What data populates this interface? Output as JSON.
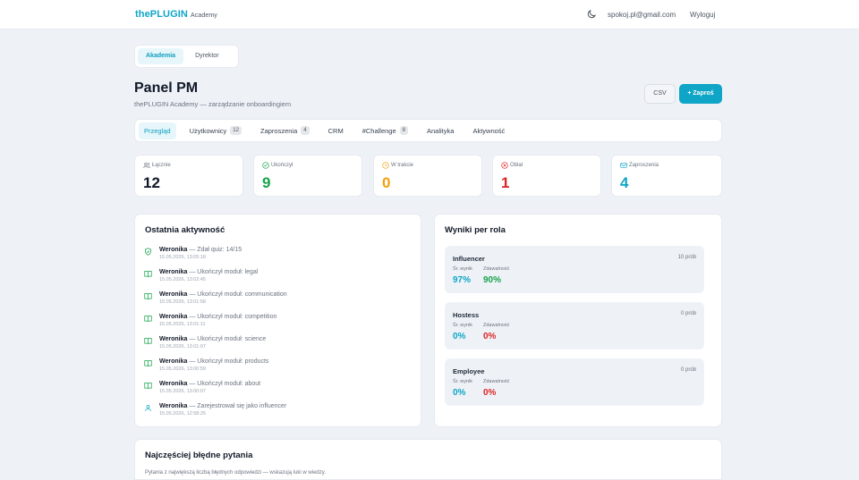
{
  "topbar": {
    "logo": "thePLUGIN",
    "logo_sub": "Academy",
    "email": "spokoj.pl@gmail.com",
    "logout": "Wyloguj"
  },
  "role_switch": [
    {
      "label": "Akademia",
      "active": true
    },
    {
      "label": "Dyrektor",
      "active": false
    }
  ],
  "header": {
    "title": "Panel PM",
    "subtitle": "thePLUGIN Academy — zarządzanie onboardingiem",
    "csv": "CSV",
    "invite": "+ Zaproś"
  },
  "tabs": [
    {
      "label": "Przegląd",
      "badge": ""
    },
    {
      "label": "Użytkownicy",
      "badge": "12"
    },
    {
      "label": "Zaproszenia",
      "badge": "4"
    },
    {
      "label": "CRM",
      "badge": ""
    },
    {
      "label": "#Challenge",
      "badge": "8"
    },
    {
      "label": "Analityka",
      "badge": ""
    },
    {
      "label": "Aktywność",
      "badge": ""
    }
  ],
  "stats": [
    {
      "label": "Łącznie",
      "value": "12",
      "color": "#111827",
      "icon": "users-icon"
    },
    {
      "label": "Ukończył",
      "value": "9",
      "color": "#16a34a",
      "icon": "check-circle-icon"
    },
    {
      "label": "W trakcie",
      "value": "0",
      "color": "#f59e0b",
      "icon": "clock-icon"
    },
    {
      "label": "Oblał",
      "value": "1",
      "color": "#dc2626",
      "icon": "x-circle-icon"
    },
    {
      "label": "Zaproszenia",
      "value": "4",
      "color": "#0ea5c6",
      "icon": "mail-icon"
    }
  ],
  "activity": {
    "title": "Ostatnia aktywność",
    "items": [
      {
        "name": "Weronika",
        "text": " — Zdał quiz: 14/15",
        "time": "15.05.2026, 13:05:18",
        "icon": "shield-check-icon"
      },
      {
        "name": "Weronika",
        "text": " — Ukończył moduł: legal",
        "time": "15.05.2026, 13:02:45",
        "icon": "book-icon"
      },
      {
        "name": "Weronika",
        "text": " — Ukończył moduł: communication",
        "time": "15.05.2026, 13:01:58",
        "icon": "book-icon"
      },
      {
        "name": "Weronika",
        "text": " — Ukończył moduł: competition",
        "time": "15.05.2026, 13:01:11",
        "icon": "book-icon"
      },
      {
        "name": "Weronika",
        "text": " — Ukończył moduł: science",
        "time": "15.05.2026, 13:01:07",
        "icon": "book-icon"
      },
      {
        "name": "Weronika",
        "text": " — Ukończył moduł: products",
        "time": "15.05.2026, 13:00:59",
        "icon": "book-icon"
      },
      {
        "name": "Weronika",
        "text": " — Ukończył moduł: about",
        "time": "15.05.2026, 13:00:07",
        "icon": "book-icon"
      },
      {
        "name": "Weronika",
        "text": " — Zarejestrował się jako influencer",
        "time": "15.05.2026, 12:58:25",
        "icon": "user-icon"
      }
    ]
  },
  "roles": {
    "title": "Wyniki per rola",
    "avg_label": "Śr. wynik",
    "pass_label": "Zdawalność",
    "items": [
      {
        "name": "Influencer",
        "count": "10 prób",
        "avg": "97%",
        "pass": "90%",
        "avg_color": "#0ea5c6",
        "pass_color": "#16a34a"
      },
      {
        "name": "Hostess",
        "count": "0 prób",
        "avg": "0%",
        "pass": "0%",
        "avg_color": "#0ea5c6",
        "pass_color": "#dc2626"
      },
      {
        "name": "Employee",
        "count": "0 prób",
        "avg": "0%",
        "pass": "0%",
        "avg_color": "#0ea5c6",
        "pass_color": "#dc2626"
      }
    ]
  },
  "questions": {
    "title": "Najczęściej błędne pytania",
    "subtitle": "Pytania z największą liczbą błędnych odpowiedzi — wskazują luki w wiedzy."
  }
}
